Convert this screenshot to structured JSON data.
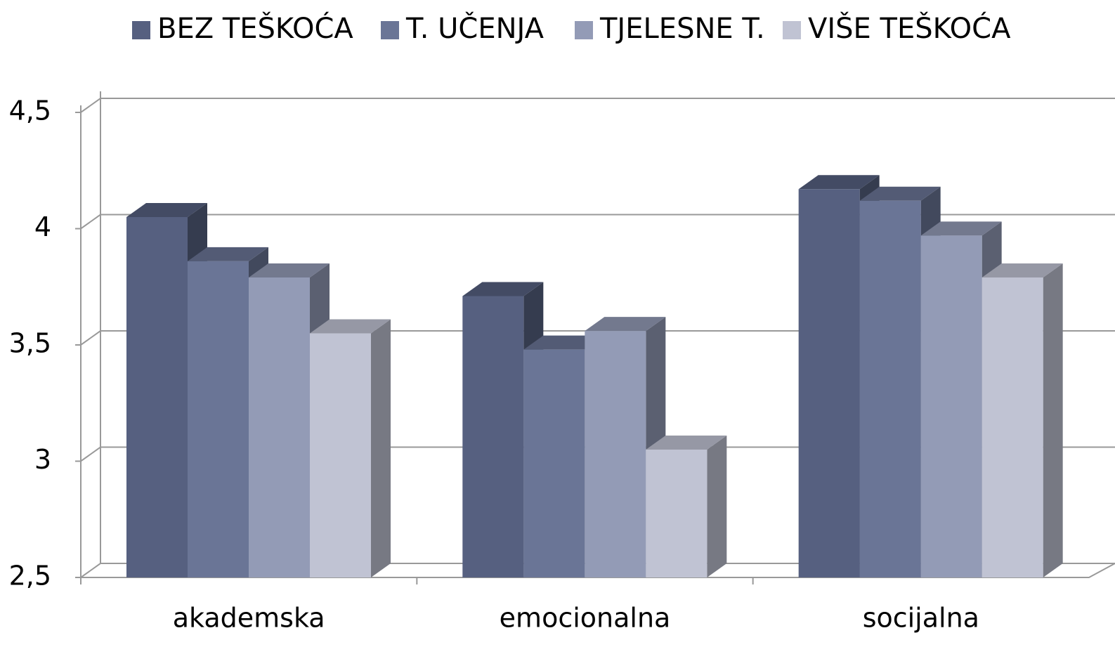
{
  "chart_data": {
    "type": "bar3d",
    "categories": [
      "akademska",
      "emocionalna",
      "socijalna"
    ],
    "series": [
      {
        "name": "BEZ TEŠKOĆA",
        "color": "#566080",
        "values": [
          4.05,
          3.71,
          4.17
        ]
      },
      {
        "name": "T. UČENJA",
        "color": "#6a7596",
        "values": [
          3.86,
          3.48,
          4.12
        ]
      },
      {
        "name": "TJELESNE T.",
        "color": "#939bb6",
        "values": [
          3.79,
          3.56,
          3.97
        ]
      },
      {
        "name": "VIŠE TEŠKOĆA",
        "color": "#c0c3d3",
        "values": [
          3.55,
          3.05,
          3.79
        ]
      }
    ],
    "ylim": [
      2.5,
      4.5
    ],
    "yticks": [
      {
        "value": 2.5,
        "label": "2,5"
      },
      3,
      {
        "value": 3.5,
        "label": "3,5"
      },
      4,
      {
        "value": 4.5,
        "label": "4,5"
      }
    ],
    "grid": true,
    "legend": "top"
  }
}
